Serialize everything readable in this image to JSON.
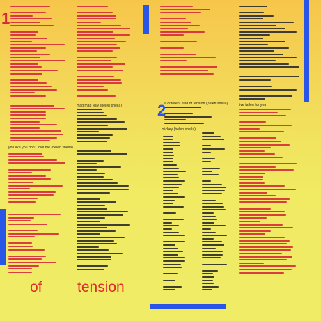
{
  "side_numbers": {
    "one": "1",
    "two": "2"
  },
  "bottom_words": {
    "left": "of",
    "right": "tension"
  },
  "song_headers": {
    "col1": "you like you don't love me (helen sheila)",
    "col2_a": "mad mad jelly (helen sheila)",
    "col2_b": "mickey (helen sheila)",
    "col3": "a different kind of tension (helen sheila)",
    "col4": "i've fallen for you"
  },
  "colors": {
    "background": "#f2ea63",
    "lyrics_red": "#d62a3a",
    "lyrics_dark": "#2b2b2b",
    "accent_blue": "#2a56e8"
  }
}
